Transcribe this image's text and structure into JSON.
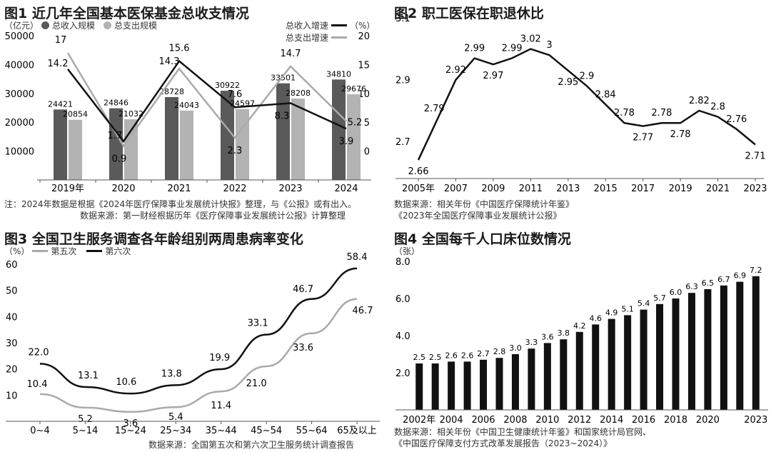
{
  "chart_data": [
    {
      "id": "fig1",
      "type": "bar+line",
      "title": "图1 近几年全国基本医保基金总收支情况",
      "left_unit": "（亿元）",
      "right_unit": "（%）",
      "legend": {
        "income_bar": "总收入规模",
        "expense_bar": "总支出规模",
        "income_line": "总收入增速",
        "expense_line": "总支出增速"
      },
      "categories": [
        "2019年",
        "2020",
        "2021",
        "2022",
        "2023",
        "2024"
      ],
      "left_ticks": [
        "10000",
        "20000",
        "30000",
        "40000",
        "50000"
      ],
      "right_ticks": [
        "0",
        "5",
        "10",
        "15",
        "20"
      ],
      "ylim_left": [
        0,
        50000
      ],
      "ylim_right": [
        -5,
        20
      ],
      "colors": {
        "income_bar": "#5a5a5a",
        "expense_bar": "#b3b3b3",
        "income_line": "#111111",
        "expense_line": "#aaaaaa"
      },
      "series": [
        {
          "name": "总收入规模",
          "kind": "bar",
          "values": [
            24421,
            24846,
            28728,
            30922,
            33501,
            34810
          ],
          "labels": [
            "24421",
            "24846",
            "28728",
            "30922",
            "33501",
            "34810"
          ]
        },
        {
          "name": "总支出规模",
          "kind": "bar",
          "values": [
            20854,
            21032,
            24043,
            24597,
            28208,
            29676
          ],
          "labels": [
            "20854",
            "21032",
            "24043",
            "24597",
            "28208",
            "29676"
          ]
        },
        {
          "name": "总收入增速",
          "kind": "line",
          "values": [
            14.2,
            1.7,
            15.6,
            7.6,
            8.3,
            3.9
          ],
          "labels": [
            "14.2",
            "1.7",
            "15.6",
            "7.6",
            "8.3",
            "3.9"
          ]
        },
        {
          "name": "总支出增速",
          "kind": "line",
          "values": [
            17,
            0.9,
            14.3,
            2.3,
            14.7,
            5.2
          ],
          "labels": [
            "17",
            "0.9",
            "14.3",
            "2.3",
            "14.7",
            "5.2"
          ]
        }
      ],
      "notes": [
        "注：2024年数据是根据《2024年医疗保障事业发展统计快报》整理，与《公报》或有出入。",
        "数据来源：第一财经根据历年《医疗保障事业发展统计公报》计算整理"
      ]
    },
    {
      "id": "fig2",
      "type": "line",
      "title": "图2 职工医保在职退休比",
      "x": [
        "2005年",
        "2006",
        "2007",
        "2008",
        "2009",
        "2010",
        "2011",
        "2012",
        "2013",
        "2014",
        "2015",
        "2016",
        "2017",
        "2018",
        "2019",
        "2020",
        "2021",
        "2022",
        "2023"
      ],
      "x_tick_labels": [
        "2005年",
        "2007",
        "2009",
        "2011",
        "2013",
        "2015",
        "2017",
        "2019",
        "2021",
        "2023"
      ],
      "values": [
        2.66,
        2.79,
        2.92,
        2.99,
        2.97,
        2.99,
        3.02,
        3.0,
        2.95,
        2.9,
        2.84,
        2.78,
        2.77,
        2.78,
        2.78,
        2.82,
        2.8,
        2.76,
        2.71
      ],
      "labels": [
        "2.66",
        "2.79",
        "2.92",
        "2.99",
        "2.97",
        "2.99",
        "3.02",
        "3",
        "2.95",
        "2.9",
        "2.84",
        "2.78",
        "2.77",
        "2.78",
        "2.78",
        "2.82",
        "2.8",
        "2.76",
        "2.71"
      ],
      "y_ticks": [
        "2.7",
        "2.9",
        "3.1"
      ],
      "ylim": [
        2.6,
        3.1
      ],
      "notes": [
        "数据来源：相关年份《中国医疗保障统计年鉴》",
        "《2023年全国医疗保障事业发展统计公报》"
      ]
    },
    {
      "id": "fig3",
      "type": "line",
      "title": "图3 全国卫生服务调查各年龄组别两周患病率变化",
      "unit": "（%）",
      "categories": [
        "0~4",
        "5~14",
        "15~24",
        "25~34",
        "35~44",
        "45~54",
        "55~64",
        "65及以上"
      ],
      "y_ticks": [
        "10",
        "20",
        "30",
        "40",
        "50",
        "60"
      ],
      "ylim": [
        0,
        60
      ],
      "colors": {
        "fifth": "#aaaaaa",
        "sixth": "#111111"
      },
      "series": [
        {
          "name": "第五次",
          "values": [
            10.4,
            5.2,
            3.6,
            5.4,
            11.4,
            21.0,
            33.6,
            46.7
          ],
          "labels": [
            "10.4",
            "5.2",
            "3.6",
            "5.4",
            "11.4",
            "21.0",
            "33.6",
            "46.7"
          ]
        },
        {
          "name": "第六次",
          "values": [
            22.0,
            13.1,
            10.6,
            13.8,
            19.9,
            33.1,
            46.7,
            58.4
          ],
          "labels": [
            "22.0",
            "13.1",
            "10.6",
            "13.8",
            "19.9",
            "33.1",
            "46.7",
            "58.4"
          ]
        }
      ],
      "notes": [
        "数据来源：全国第五次和第六次卫生服务统计调查报告"
      ]
    },
    {
      "id": "fig4",
      "type": "bar",
      "title": "图4 全国每千人口床位数情况",
      "unit": "（张）",
      "categories": [
        "2002年",
        "2003",
        "2004",
        "2005",
        "2006",
        "2007",
        "2008",
        "2009",
        "2010",
        "2011",
        "2012",
        "2013",
        "2014",
        "2015",
        "2016",
        "2017",
        "2018",
        "2019",
        "2020",
        "2021",
        "2022",
        "2023"
      ],
      "x_tick_labels": [
        "2002年",
        "2004",
        "2006",
        "2008",
        "2010",
        "2012",
        "2014",
        "2016",
        "2018",
        "2020",
        "2023"
      ],
      "values": [
        2.5,
        2.5,
        2.6,
        2.6,
        2.7,
        2.8,
        3.0,
        3.3,
        3.6,
        3.8,
        4.2,
        4.6,
        4.9,
        5.1,
        5.4,
        5.7,
        6.0,
        6.3,
        6.5,
        6.7,
        6.9,
        7.2
      ],
      "labels": [
        "2.5",
        "2.5",
        "2.6",
        "2.6",
        "2.7",
        "2.8",
        "3.0",
        "3.3",
        "3.6",
        "3.8",
        "4.2",
        "4.6",
        "4.9",
        "5.1",
        "5.4",
        "5.7",
        "6.0",
        "6.3",
        "6.5",
        "6.7",
        "6.9",
        "7.2"
      ],
      "y_ticks": [
        "2.0",
        "4.0",
        "6.0",
        "8.0"
      ],
      "ylim": [
        0,
        8
      ],
      "notes": [
        "数据来源：相关年份《中国卫生健康统计年鉴》和国家统计局官网、",
        "《中国医疗保障支付方式改革发展报告（2023~2024）》"
      ]
    }
  ]
}
